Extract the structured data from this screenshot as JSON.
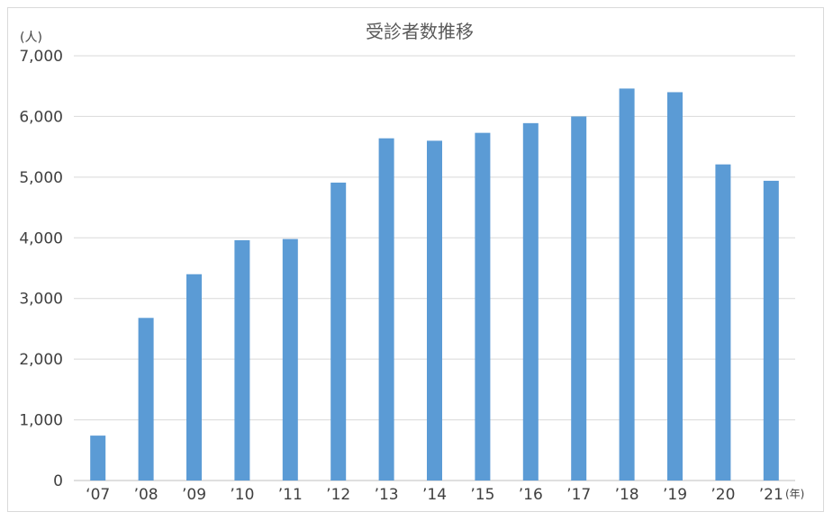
{
  "chart_data": {
    "type": "bar",
    "title": "受診者数推移",
    "ylabel": "(人)",
    "xlabel": "(年)",
    "categories": [
      "‘07",
      "’08",
      "’09",
      "’10",
      "’11",
      "’12",
      "’13",
      "’14",
      "’15",
      "’16",
      "’17",
      "’18",
      "’19",
      "’20",
      "’21"
    ],
    "series": [
      {
        "values": [
          740,
          2680,
          3400,
          3960,
          3980,
          4910,
          5640,
          5600,
          5730,
          5890,
          6000,
          6460,
          6400,
          5210,
          4940
        ]
      }
    ],
    "ylim": [
      0,
      7000
    ],
    "yticks": [
      0,
      1000,
      2000,
      3000,
      4000,
      5000,
      6000,
      7000
    ],
    "ytick_labels": [
      "0",
      "1,000",
      "2,000",
      "3,000",
      "4,000",
      "5,000",
      "6,000",
      "7,000"
    ],
    "grid": true,
    "legend": "none",
    "colors": {
      "bar": "#5b9bd5",
      "grid": "#d9d9d9",
      "axis": "#bfbfbf"
    }
  }
}
